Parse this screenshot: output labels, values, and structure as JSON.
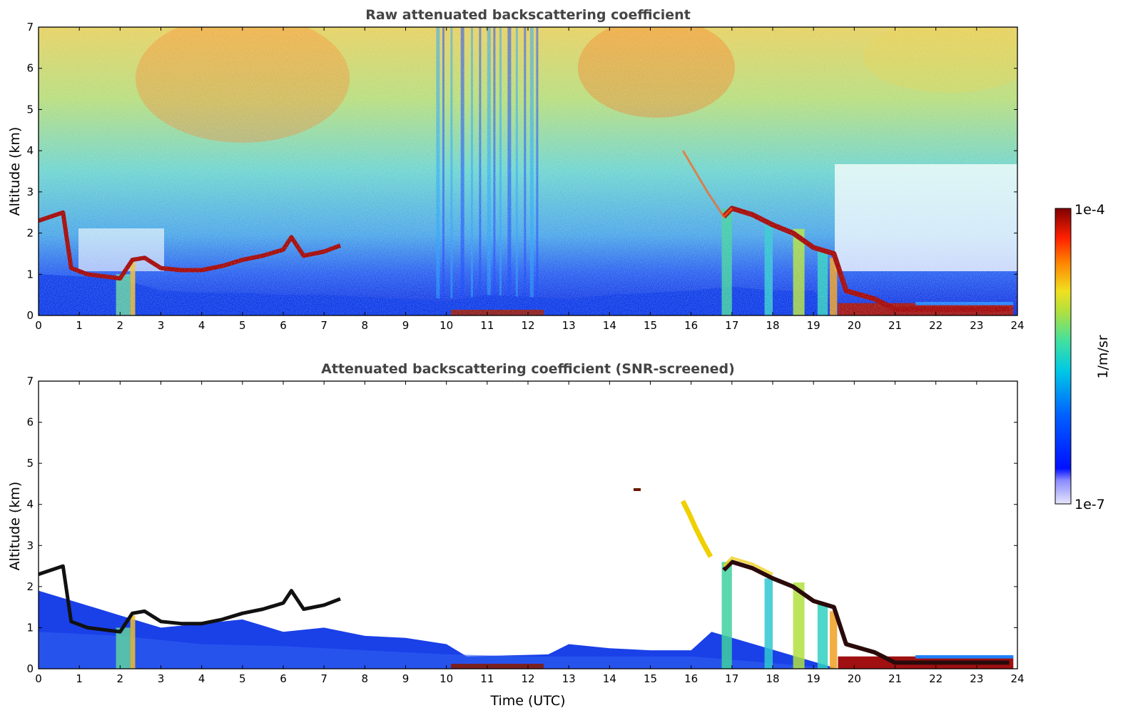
{
  "colors": {
    "low": "#e6e6fa",
    "blue": "#0010ff",
    "cyan": "#00d0e0",
    "green": "#60e060",
    "yellow": "#f0e020",
    "orange": "#ff6000",
    "red": "#8b0000"
  },
  "chart_data": [
    {
      "type": "heatmap",
      "title": "Raw attenuated backscattering coefficient",
      "xlabel": "",
      "ylabel": "Altitude (km)",
      "xlim": [
        0,
        24
      ],
      "ylim": [
        0,
        7
      ],
      "xticks": [
        0,
        1,
        2,
        3,
        4,
        5,
        6,
        7,
        8,
        9,
        10,
        11,
        12,
        13,
        14,
        15,
        16,
        17,
        18,
        19,
        20,
        21,
        22,
        23,
        24
      ],
      "yticks": [
        0,
        1,
        2,
        3,
        4,
        5,
        6,
        7
      ],
      "cloud_layer": {
        "time": [
          0,
          0.6,
          0.8,
          1.2,
          1.6,
          2.0,
          2.3,
          2.6,
          3.0,
          3.5,
          4.0,
          4.5,
          5.0,
          5.5,
          6.0,
          6.2,
          6.5,
          7.0,
          7.4
        ],
        "altitude": [
          2.3,
          2.5,
          1.15,
          1.0,
          0.95,
          0.9,
          1.35,
          1.4,
          1.15,
          1.1,
          1.1,
          1.2,
          1.35,
          1.45,
          1.6,
          1.9,
          1.45,
          1.55,
          1.7
        ]
      },
      "evening_layer": {
        "time": [
          15.8,
          16.4,
          16.8,
          17.0,
          17.5,
          18.0,
          18.5,
          19.0,
          19.5,
          19.8,
          20.5,
          21.0,
          22.0,
          23.0,
          23.8
        ],
        "altitude": [
          4.0,
          3.0,
          2.4,
          2.6,
          2.45,
          2.2,
          2.0,
          1.65,
          1.5,
          0.6,
          0.4,
          0.15,
          0.15,
          0.15,
          0.15
        ]
      },
      "colorbar": {
        "min": "1e-7",
        "max": "1e-4",
        "label": "1/m/sr"
      }
    },
    {
      "type": "heatmap",
      "title": "Attenuated backscattering coefficient (SNR-screened)",
      "xlabel": "Time (UTC)",
      "ylabel": "Altitude (km)",
      "xlim": [
        0,
        24
      ],
      "ylim": [
        0,
        7
      ],
      "xticks": [
        0,
        1,
        2,
        3,
        4,
        5,
        6,
        7,
        8,
        9,
        10,
        11,
        12,
        13,
        14,
        15,
        16,
        17,
        18,
        19,
        20,
        21,
        22,
        23,
        24
      ],
      "yticks": [
        0,
        1,
        2,
        3,
        4,
        5,
        6,
        7
      ],
      "boundary_layer_top": {
        "time": [
          0,
          1,
          2,
          3,
          4,
          5,
          6,
          7,
          8,
          9,
          10,
          10.5,
          12.5,
          13,
          14,
          15,
          16,
          16.5
        ],
        "altitude": [
          1.9,
          1.6,
          1.3,
          1.0,
          1.1,
          1.2,
          0.9,
          1.0,
          0.8,
          0.75,
          0.6,
          0.3,
          0.35,
          0.6,
          0.5,
          0.45,
          0.45,
          0.9
        ]
      }
    }
  ],
  "colorbar": {
    "min_label": "1e-7",
    "max_label": "1e-4",
    "units_label": "1/m/sr"
  }
}
